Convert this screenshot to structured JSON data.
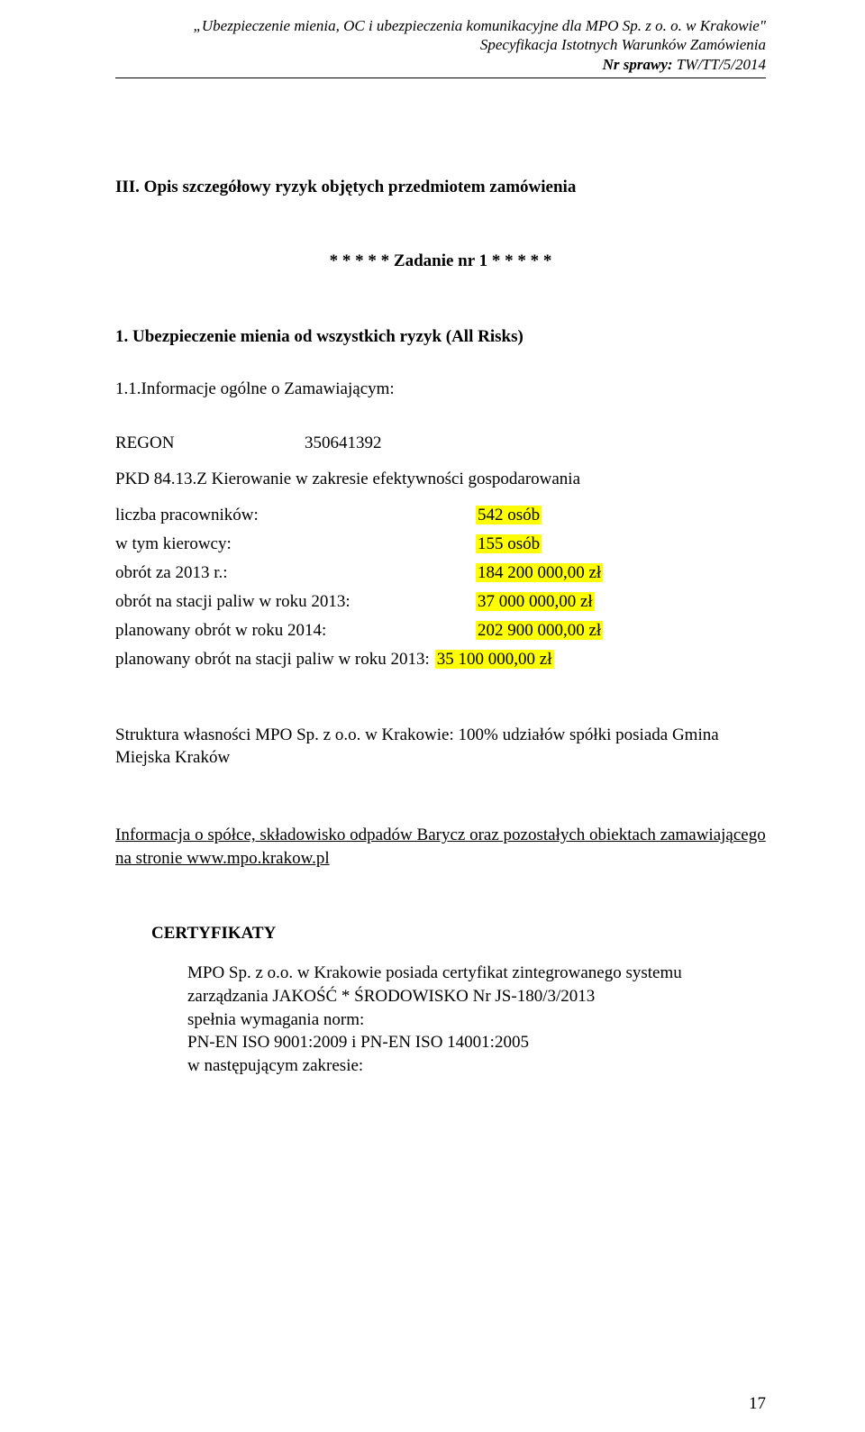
{
  "header": {
    "line1": "„Ubezpieczenie mienia, OC i ubezpieczenia komunikacyjne dla MPO Sp. z o. o. w Krakowie\"",
    "line2": "Specyfikacja Istotnych Warunków Zamówienia",
    "line3_label": "Nr sprawy:",
    "line3_value": "TW/TT/5/2014"
  },
  "section": {
    "heading": "III. Opis szczegółowy ryzyk objętych przedmiotem zamówienia",
    "task_line": "* * * * * Zadanie nr 1   * * * * *",
    "sub_heading": "1. Ubezpieczenie mienia od wszystkich ryzyk (All Risks)",
    "info_label": "1.1.Informacje ogólne o Zamawiającym:"
  },
  "info": {
    "regon_label": "REGON",
    "regon_value": "350641392",
    "pkd": "PKD  84.13.Z Kierowanie w zakresie efektywności gospodarowania"
  },
  "data": {
    "rows": [
      {
        "label": "liczba pracowników:",
        "value": "542 osób"
      },
      {
        "label": "w tym kierowcy:",
        "value": "155 osób"
      },
      {
        "label": "obrót  za  2013 r.:",
        "value": "184 200 000,00 zł"
      },
      {
        "label": "obrót na stacji paliw w roku 2013:",
        "value": "37 000 000,00 zł"
      },
      {
        "label": " planowany obrót w roku 2014:",
        "value": "202 900 000,00 zł"
      },
      {
        "label": " planowany obrót na stacji paliw w roku 2013:",
        "value": "35 100 000,00 zł"
      }
    ],
    "highlight_color": "#ffff00"
  },
  "structure": {
    "text": "Struktura własności MPO Sp. z o.o. w Krakowie:  100% udziałów spółki posiada  Gmina Miejska  Kraków"
  },
  "info_link": {
    "underlined": "Informacja o spółce, składowisko odpadów Barycz oraz pozostałych obiektach zamawiającego na stronie www.mpo.krakow.pl"
  },
  "cert": {
    "title": "CERTYFIKATY",
    "body_line1": "MPO Sp. z o.o. w Krakowie posiada certyfikat zintegrowanego systemu zarządzania JAKOŚĆ * ŚRODOWISKO Nr  JS-180/3/2013",
    "body_line2": "spełnia wymagania norm:",
    "body_line3": "PN-EN ISO 9001:2009 i PN-EN ISO 14001:2005",
    "body_line4": " w następującym zakresie:"
  },
  "page_number": "17"
}
